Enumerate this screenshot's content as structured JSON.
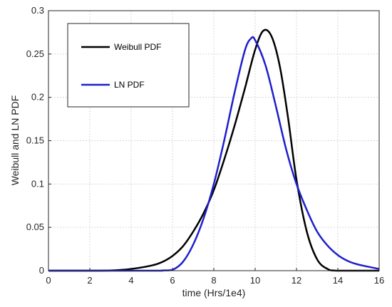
{
  "chart_data": {
    "type": "line",
    "xlabel": "time (Hrs/1e4)",
    "ylabel": "Weibull and LN PDF",
    "xlim": [
      0,
      16
    ],
    "ylim": [
      0,
      0.3
    ],
    "x_ticks": [
      "0",
      "2",
      "4",
      "6",
      "8",
      "10",
      "12",
      "14",
      "16"
    ],
    "y_ticks": [
      "0",
      "0.05",
      "0.1",
      "0.15",
      "0.2",
      "0.25",
      "0.3"
    ],
    "grid": true,
    "legend_position": "top-left",
    "series": [
      {
        "name": "Weibull  PDF",
        "color": "#000000",
        "x": [
          0,
          2,
          3,
          4,
          5,
          5.5,
          6,
          6.5,
          7,
          7.5,
          8,
          8.5,
          9,
          9.5,
          10,
          10.4,
          10.8,
          11.2,
          11.6,
          12,
          12.5,
          13,
          13.5,
          14,
          16
        ],
        "y": [
          0,
          0,
          0.0002,
          0.002,
          0.006,
          0.01,
          0.017,
          0.028,
          0.045,
          0.066,
          0.093,
          0.128,
          0.167,
          0.21,
          0.255,
          0.277,
          0.27,
          0.235,
          0.175,
          0.105,
          0.045,
          0.013,
          0.002,
          0,
          0
        ]
      },
      {
        "name": "LN PDF",
        "color": "#1f1fcc",
        "x": [
          0,
          5,
          5.5,
          6,
          6.5,
          7,
          7.5,
          8,
          8.5,
          9,
          9.5,
          9.8,
          10,
          10.5,
          11,
          11.5,
          12,
          12.5,
          13,
          13.5,
          14,
          14.5,
          15,
          16
        ],
        "y": [
          0,
          0,
          0.0002,
          0.001,
          0.01,
          0.03,
          0.06,
          0.1,
          0.15,
          0.205,
          0.254,
          0.268,
          0.266,
          0.237,
          0.19,
          0.14,
          0.1,
          0.07,
          0.045,
          0.029,
          0.018,
          0.011,
          0.007,
          0.002
        ]
      }
    ]
  }
}
